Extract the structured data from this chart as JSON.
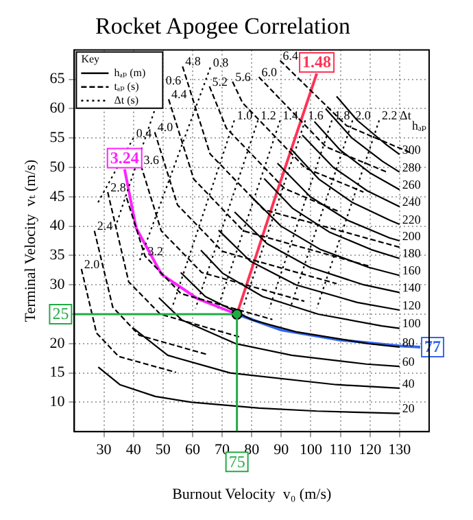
{
  "chart_data": {
    "type": "line",
    "title": "Rocket Apogee Correlation",
    "xlabel": "Burnout Velocity  v₀ (m/s)",
    "ylabel": "Terminal Velocity  vₜ (m/s)",
    "legend_title": "Key",
    "legend": "top left",
    "grid": true,
    "xlim": [
      20,
      140
    ],
    "ylim": [
      5,
      70
    ],
    "xticks": [
      30,
      40,
      50,
      60,
      70,
      80,
      90,
      100,
      110,
      120,
      130
    ],
    "yticks": [
      10,
      15,
      20,
      25,
      30,
      35,
      40,
      45,
      50,
      55,
      60,
      65
    ],
    "series": [
      {
        "name": "hₐₚ (m)",
        "color": "#000000",
        "line_style": "solid",
        "x": [
          28.1,
          35.4,
          47.4,
          59.7,
          82.5,
          102,
          130
        ],
        "values": [
          16,
          13,
          11,
          10,
          9,
          8.5,
          8.1
        ]
      },
      {
        "color": "#000000",
        "line_style": "solid",
        "x": [
          39.7,
          51.6,
          72.7,
          108.6,
          130
        ],
        "values": [
          22.7,
          18,
          15,
          13,
          12.4
        ]
      },
      {
        "color": "#000000",
        "line_style": "solid",
        "x": [
          48.6,
          56.4,
          74.5,
          93.5,
          118.8,
          130
        ],
        "values": [
          27.8,
          24,
          20,
          18,
          16.5,
          16.1
        ]
      },
      {
        "color": "#000000",
        "line_style": "solid",
        "x": [
          56,
          64.3,
          80.3,
          94.9,
          119.3,
          130
        ],
        "values": [
          32.1,
          28,
          24,
          22,
          20,
          19.4
        ]
      },
      {
        "color": "#000000",
        "line_style": "solid",
        "x": [
          62.8,
          70.1,
          83.7,
          102.5,
          124,
          130
        ],
        "values": [
          35.9,
          32,
          28,
          25,
          23,
          22.6
        ]
      },
      {
        "color": "#000000",
        "line_style": "solid",
        "x": [
          68.8,
          79.6,
          95,
          115.7,
          130
        ],
        "values": [
          39.3,
          34,
          30,
          27,
          25.7
        ]
      },
      {
        "color": "#000000",
        "line_style": "solid",
        "x": [
          74.2,
          85.2,
          99.6,
          117.9,
          130
        ],
        "values": [
          42.4,
          37,
          33,
          30,
          28.7
        ]
      },
      {
        "color": "#000000",
        "line_style": "solid",
        "x": [
          79.3,
          89.9,
          103.3,
          119.4,
          130
        ],
        "values": [
          45.3,
          40,
          36,
          33,
          31.6
        ]
      },
      {
        "color": "#000000",
        "line_style": "solid",
        "x": [
          84.2,
          93.9,
          106.2,
          120.4,
          130
        ],
        "values": [
          48.1,
          43,
          39,
          36,
          34.5
        ]
      },
      {
        "color": "#000000",
        "line_style": "solid",
        "x": [
          88.7,
          99.8,
          112.4,
          126.6,
          130
        ],
        "values": [
          50.7,
          45,
          41,
          38,
          37.5
        ]
      },
      {
        "color": "#000000",
        "line_style": "solid",
        "x": [
          93.1,
          102.7,
          114.1,
          126.7,
          130
        ],
        "values": [
          53.2,
          48,
          44,
          41,
          40.3
        ]
      },
      {
        "color": "#000000",
        "line_style": "solid",
        "x": [
          97.1,
          107.6,
          119.1,
          130
        ],
        "values": [
          55.5,
          50,
          46,
          43.3
        ]
      },
      {
        "color": "#000000",
        "line_style": "solid",
        "x": [
          101.2,
          109.8,
          120.2,
          130
        ],
        "values": [
          57.8,
          53,
          49,
          46.2
        ]
      },
      {
        "color": "#000000",
        "line_style": "solid",
        "x": [
          105,
          113.9,
          124.3,
          130
        ],
        "values": [
          60,
          55,
          51,
          49.2
        ]
      },
      {
        "color": "#000000",
        "line_style": "solid",
        "x": [
          108.7,
          115.7,
          125.2,
          130
        ],
        "values": [
          62.1,
          58,
          54,
          52.2
        ]
      },
      {
        "name": "tₐₚ (s)",
        "color": "#000000",
        "line_style": "dashed",
        "x": [
          22.4,
          27.5,
          35,
          54.4
        ],
        "values": [
          32.7,
          21.8,
          17.8,
          15.1
        ]
      },
      {
        "color": "#000000",
        "line_style": "dashed",
        "x": [
          26.8,
          33,
          42,
          65.2
        ],
        "values": [
          39.2,
          26.2,
          21.4,
          18.1
        ]
      },
      {
        "color": "#000000",
        "line_style": "dashed",
        "x": [
          31.3,
          38.4,
          49.1,
          76.1
        ],
        "values": [
          45.8,
          30.5,
          25,
          21.1
        ]
      },
      {
        "color": "#000000",
        "line_style": "dashed",
        "x": [
          37.7,
          43.9,
          56.1,
          87
        ],
        "values": [
          44.8,
          34.9,
          28.5,
          24.1
        ]
      },
      {
        "color": "#000000",
        "line_style": "dashed",
        "x": [
          42.5,
          49.4,
          63.1,
          97.8
        ],
        "values": [
          50.4,
          39.2,
          32.1,
          27.2
        ]
      },
      {
        "color": "#000000",
        "line_style": "dashed",
        "x": [
          47.2,
          54.9,
          70.1,
          108.7
        ],
        "values": [
          56,
          43.6,
          35.7,
          30.2
        ]
      },
      {
        "color": "#000000",
        "line_style": "dashed",
        "x": [
          51.9,
          60.4,
          77.1,
          119.6
        ],
        "values": [
          61.6,
          48,
          39.2,
          33.2
        ]
      },
      {
        "color": "#000000",
        "line_style": "dashed",
        "x": [
          56.6,
          65.9,
          84.1,
          130
        ],
        "values": [
          67.2,
          52.3,
          42.8,
          36.4
        ]
      },
      {
        "color": "#000000",
        "line_style": "dashed",
        "x": [
          65.7,
          71.4,
          91.1,
          109.4
        ],
        "values": [
          63.8,
          56.7,
          46.4,
          42.5
        ]
      },
      {
        "color": "#000000",
        "line_style": "dashed",
        "x": [
          73.5,
          76.9,
          98.1,
          117.8
        ],
        "values": [
          64.6,
          61,
          49.9,
          45.8
        ]
      },
      {
        "color": "#000000",
        "line_style": "dashed",
        "x": [
          82.4,
          105.1,
          126.2
        ],
        "values": [
          65.4,
          53.5,
          49.1
        ]
      },
      {
        "color": "#000000",
        "line_style": "dashed",
        "x": [
          89.6,
          112.1,
          134.6
        ],
        "values": [
          68.2,
          57.1,
          52.3
        ]
      },
      {
        "name": "Δt (s)",
        "color": "#000000",
        "line_style": "dotted",
        "x": [
          40,
          28
        ],
        "values": [
          55,
          44
        ]
      },
      {
        "color": "#000000",
        "line_style": "dotted",
        "x": [
          50,
          34
        ],
        "values": [
          64,
          40
        ]
      },
      {
        "color": "#000000",
        "line_style": "dotted",
        "x": [
          66,
          42
        ],
        "values": [
          67,
          34
        ]
      },
      {
        "color": "#000000",
        "line_style": "dotted",
        "x": [
          74.1,
          53
        ],
        "values": [
          58,
          26
        ]
      },
      {
        "color": "#000000",
        "line_style": "dotted",
        "x": [
          82.1,
          61
        ],
        "values": [
          58,
          26
        ]
      },
      {
        "color": "#000000",
        "line_style": "dotted",
        "x": [
          89.6,
          68.5
        ],
        "values": [
          58,
          26
        ]
      },
      {
        "color": "#000000",
        "line_style": "dotted",
        "x": [
          98.1,
          77
        ],
        "values": [
          58,
          26
        ]
      },
      {
        "color": "#000000",
        "line_style": "dotted",
        "x": [
          107.1,
          86
        ],
        "values": [
          58,
          26
        ]
      },
      {
        "color": "#000000",
        "line_style": "dotted",
        "x": [
          114.1,
          93
        ],
        "values": [
          58,
          26
        ]
      },
      {
        "color": "#000000",
        "line_style": "dotted",
        "x": [
          123.1,
          102
        ],
        "values": [
          58,
          26
        ]
      },
      {
        "name": "3.24",
        "color": "#ff22ff",
        "line_style": "solid",
        "x": [
          75,
          61.8,
          49.5,
          40.9,
          37
        ],
        "values": [
          25,
          27.6,
          31.8,
          39.7,
          49.7
        ]
      },
      {
        "name": "1.48",
        "color": "#ff3355",
        "line_style": "solid",
        "x": [
          75,
          88,
          102
        ],
        "values": [
          25,
          45,
          66
        ]
      },
      {
        "name": "77",
        "color": "#3366ee",
        "line_style": "solid",
        "x": [
          75,
          90,
          110,
          130,
          137
        ],
        "values": [
          25,
          22.3,
          20.6,
          19.6,
          19.4
        ]
      },
      {
        "type": "scatter",
        "marker": "circle",
        "color": "#22aa44",
        "x": [
          75
        ],
        "values": [
          25
        ]
      }
    ],
    "ref_lines": [
      {
        "axis": "y",
        "value": 25,
        "label": "25",
        "color": "#22aa44"
      },
      {
        "axis": "x",
        "value": 75,
        "label": "75",
        "color": "#22aa44"
      }
    ],
    "annotations": [
      {
        "text": "20",
        "x": 130,
        "y": 8.1
      },
      {
        "text": "40",
        "x": 130,
        "y": 12.4
      },
      {
        "text": "60",
        "x": 130,
        "y": 16.1
      },
      {
        "text": "80",
        "x": 130,
        "y": 19.4
      },
      {
        "text": "100",
        "x": 130,
        "y": 22.6
      },
      {
        "text": "120",
        "x": 130,
        "y": 25.7
      },
      {
        "text": "140",
        "x": 130,
        "y": 28.7
      },
      {
        "text": "160",
        "x": 130,
        "y": 31.6
      },
      {
        "text": "180",
        "x": 130,
        "y": 34.5
      },
      {
        "text": "200",
        "x": 130,
        "y": 37.5
      },
      {
        "text": "220",
        "x": 130,
        "y": 40.3
      },
      {
        "text": "240",
        "x": 130,
        "y": 43.3
      },
      {
        "text": "260",
        "x": 130,
        "y": 46.2
      },
      {
        "text": "280",
        "x": 130,
        "y": 49.2
      },
      {
        "text": "300",
        "x": 130,
        "y": 52.2
      },
      "hₐₚ",
      {
        "text": "2.0",
        "x": 22.4,
        "y": 32.7
      },
      {
        "text": "2.4",
        "x": 26.8,
        "y": 39.2
      },
      {
        "text": "2.8",
        "x": 31.3,
        "y": 45.8
      },
      {
        "text": "3.2",
        "x": 43.9,
        "y": 34.9
      },
      {
        "text": "3.6",
        "x": 42.5,
        "y": 50.4
      },
      {
        "text": "4.0",
        "x": 47.2,
        "y": 56
      },
      {
        "text": "4.4",
        "x": 51.9,
        "y": 61.6
      },
      {
        "text": "4.8",
        "x": 56.6,
        "y": 67.2
      },
      {
        "text": "5.2",
        "x": 65.7,
        "y": 63.8
      },
      {
        "text": "5.6",
        "x": 73.5,
        "y": 64.6
      },
      {
        "text": "6.0",
        "x": 82.4,
        "y": 65.4
      },
      {
        "text": "6.4",
        "x": 89.6,
        "y": 68.2
      },
      {
        "text": "0.4",
        "x": 40,
        "y": 55
      },
      {
        "text": "0.6",
        "x": 50,
        "y": 64
      },
      {
        "text": "0.8",
        "x": 66,
        "y": 67
      },
      {
        "text": "1.0",
        "x": 74.1,
        "y": 58
      },
      {
        "text": "1.2",
        "x": 82.1,
        "y": 58
      },
      {
        "text": "1.4",
        "x": 89.6,
        "y": 58
      },
      {
        "text": "1.6",
        "x": 98.1,
        "y": 58
      },
      {
        "text": "1.8",
        "x": 107.1,
        "y": 58
      },
      {
        "text": "2.0",
        "x": 114.1,
        "y": 58
      },
      {
        "text": "2.2 Δt",
        "x": 123.1,
        "y": 58
      }
    ]
  }
}
